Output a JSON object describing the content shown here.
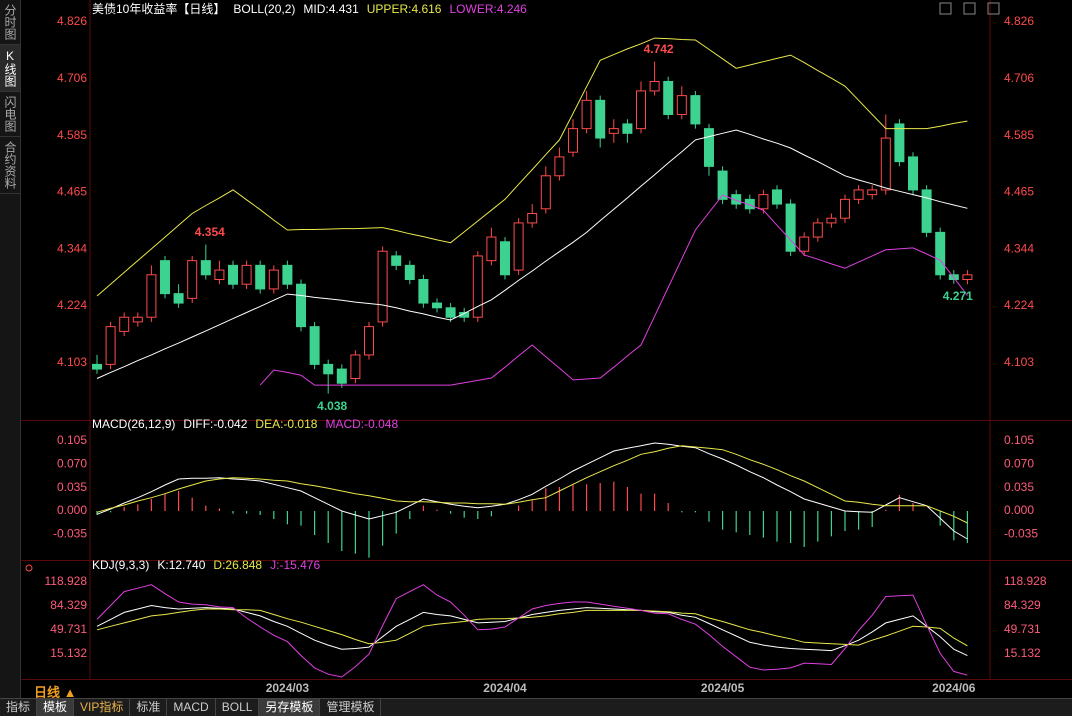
{
  "ui": {
    "sidebar": [
      "分时图",
      "K线图",
      "闪电图",
      "合约资料"
    ],
    "period": "日线 ▲",
    "tabs": [
      "指标",
      "模板",
      "VIP指标",
      "标准",
      "MACD",
      "BOLL",
      "另存模板",
      "管理模板"
    ]
  },
  "chart_data": [
    {
      "type": "candlestick",
      "title": "美债10年收益率【日线】",
      "indicator": "BOLL(20,2)",
      "categories": [
        null,
        null,
        null,
        null,
        null,
        null,
        null,
        null,
        null,
        null,
        null,
        null,
        null,
        null,
        "2024/03",
        null,
        null,
        null,
        null,
        null,
        null,
        null,
        null,
        null,
        null,
        null,
        null,
        null,
        null,
        null,
        "2024/04",
        null,
        null,
        null,
        null,
        null,
        null,
        null,
        null,
        null,
        null,
        null,
        null,
        null,
        null,
        null,
        "2024/05",
        null,
        null,
        null,
        null,
        null,
        null,
        null,
        null,
        null,
        null,
        null,
        null,
        null,
        null,
        null,
        null,
        "2024/06",
        null
      ],
      "open": [
        4.1,
        4.1,
        4.17,
        4.19,
        4.2,
        4.32,
        4.25,
        4.24,
        4.32,
        4.28,
        4.31,
        4.27,
        4.31,
        4.26,
        4.31,
        4.27,
        4.18,
        4.1,
        4.09,
        4.07,
        4.12,
        4.19,
        4.33,
        4.31,
        4.28,
        4.23,
        4.22,
        4.21,
        4.2,
        4.32,
        4.36,
        4.3,
        4.4,
        4.43,
        4.5,
        4.55,
        4.6,
        4.66,
        4.59,
        4.61,
        4.6,
        4.68,
        4.7,
        4.63,
        4.67,
        4.6,
        4.51,
        4.46,
        4.45,
        4.43,
        4.47,
        4.44,
        4.34,
        4.37,
        4.4,
        4.41,
        4.45,
        4.46,
        4.47,
        4.61,
        4.54,
        4.47,
        4.38,
        4.29,
        4.28
      ],
      "high": [
        4.12,
        4.19,
        4.21,
        4.21,
        4.31,
        4.33,
        4.27,
        4.33,
        4.354,
        4.32,
        4.32,
        4.32,
        4.32,
        4.31,
        4.32,
        4.28,
        4.19,
        4.11,
        4.1,
        4.13,
        4.19,
        4.35,
        4.34,
        4.32,
        4.29,
        4.24,
        4.23,
        4.22,
        4.34,
        4.39,
        4.37,
        4.41,
        4.44,
        4.52,
        4.56,
        4.62,
        4.68,
        4.67,
        4.62,
        4.62,
        4.7,
        4.742,
        4.71,
        4.69,
        4.68,
        4.61,
        4.52,
        4.47,
        4.46,
        4.47,
        4.48,
        4.45,
        4.38,
        4.41,
        4.42,
        4.46,
        4.48,
        4.48,
        4.63,
        4.62,
        4.55,
        4.48,
        4.39,
        4.3,
        4.3
      ],
      "low": [
        4.08,
        4.09,
        4.16,
        4.18,
        4.19,
        4.24,
        4.22,
        4.23,
        4.28,
        4.27,
        4.26,
        4.26,
        4.25,
        4.25,
        4.26,
        4.17,
        4.09,
        4.038,
        4.05,
        4.06,
        4.11,
        4.18,
        4.3,
        4.27,
        4.22,
        4.21,
        4.19,
        4.19,
        4.19,
        4.31,
        4.28,
        4.29,
        4.39,
        4.42,
        4.49,
        4.54,
        4.59,
        4.56,
        4.57,
        4.57,
        4.59,
        4.67,
        4.62,
        4.62,
        4.6,
        4.5,
        4.44,
        4.43,
        4.42,
        4.42,
        4.43,
        4.33,
        4.33,
        4.36,
        4.39,
        4.4,
        4.44,
        4.45,
        4.46,
        4.52,
        4.46,
        4.37,
        4.28,
        4.271,
        4.27
      ],
      "close": [
        4.09,
        4.18,
        4.2,
        4.2,
        4.29,
        4.25,
        4.23,
        4.32,
        4.29,
        4.3,
        4.27,
        4.31,
        4.26,
        4.3,
        4.27,
        4.18,
        4.1,
        4.08,
        4.06,
        4.12,
        4.18,
        4.34,
        4.31,
        4.28,
        4.23,
        4.22,
        4.2,
        4.2,
        4.33,
        4.37,
        4.29,
        4.4,
        4.42,
        4.5,
        4.54,
        4.6,
        4.66,
        4.58,
        4.6,
        4.59,
        4.68,
        4.7,
        4.63,
        4.67,
        4.61,
        4.52,
        4.45,
        4.44,
        4.43,
        4.46,
        4.44,
        4.34,
        4.37,
        4.4,
        4.41,
        4.45,
        4.47,
        4.47,
        4.58,
        4.53,
        4.47,
        4.38,
        4.29,
        4.28,
        4.29
      ],
      "up_color": "#ff4a4a",
      "down_color": "#3dd28f",
      "series": [
        {
          "name": "MID:4.431",
          "color": "#ffffff",
          "values": [
            4.07,
            4.083,
            4.095,
            4.108,
            4.12,
            4.133,
            4.145,
            4.158,
            4.171,
            4.184,
            4.197,
            4.21,
            4.223,
            4.236,
            4.249,
            4.246,
            4.242,
            4.239,
            4.236,
            4.232,
            4.229,
            4.226,
            4.22,
            4.213,
            4.207,
            4.2,
            4.194,
            4.208,
            4.223,
            4.237,
            4.257,
            4.278,
            4.298,
            4.319,
            4.339,
            4.359,
            4.38,
            4.405,
            4.429,
            4.453,
            4.478,
            4.502,
            4.527,
            4.551,
            4.576,
            4.583,
            4.59,
            4.597,
            4.588,
            4.578,
            4.569,
            4.559,
            4.544,
            4.53,
            4.515,
            4.5,
            4.491,
            4.483,
            4.474,
            4.467,
            4.46,
            4.453,
            4.445,
            4.438,
            4.431
          ]
        },
        {
          "name": "UPPER:4.616",
          "color": "#e8e84a",
          "values": [
            4.245,
            4.27,
            4.295,
            4.32,
            4.345,
            4.37,
            4.395,
            4.42,
            4.437,
            4.453,
            4.47,
            4.449,
            4.428,
            4.406,
            4.385,
            4.386,
            4.386,
            4.387,
            4.388,
            4.388,
            4.389,
            4.39,
            4.384,
            4.377,
            4.371,
            4.364,
            4.358,
            4.381,
            4.404,
            4.427,
            4.45,
            4.482,
            4.513,
            4.545,
            4.576,
            4.632,
            4.689,
            4.745,
            4.757,
            4.769,
            4.78,
            4.792,
            4.791,
            4.789,
            4.788,
            4.768,
            4.748,
            4.728,
            4.735,
            4.742,
            4.749,
            4.756,
            4.74,
            4.723,
            4.707,
            4.69,
            4.66,
            4.63,
            4.6,
            4.6,
            4.6,
            4.6,
            4.605,
            4.611,
            4.616
          ]
        },
        {
          "name": "LOWER:4.246",
          "color": "#e040e0",
          "values": [
            null,
            null,
            null,
            null,
            null,
            null,
            null,
            null,
            null,
            null,
            null,
            null,
            4.056,
            4.088,
            4.083,
            4.077,
            4.056,
            4.056,
            4.056,
            4.056,
            4.056,
            4.056,
            4.056,
            4.056,
            4.056,
            4.056,
            4.056,
            4.061,
            4.066,
            4.071,
            4.094,
            4.118,
            4.141,
            4.116,
            4.092,
            4.067,
            4.069,
            4.071,
            4.094,
            4.118,
            4.141,
            4.202,
            4.263,
            4.324,
            4.385,
            4.422,
            4.459,
            4.448,
            4.438,
            4.427,
            4.395,
            4.364,
            4.332,
            4.323,
            4.313,
            4.304,
            4.317,
            4.33,
            4.343,
            4.345,
            4.347,
            4.334,
            4.321,
            4.284,
            4.246
          ]
        }
      ],
      "annotations": [
        {
          "index": 8,
          "value": 4.354
        },
        {
          "index": 17,
          "value": 4.038
        },
        {
          "index": 41,
          "value": 4.742
        },
        {
          "index": 63,
          "value": 4.271
        }
      ],
      "ylim": [
        3.982,
        4.841
      ],
      "yticks": [
        4.103,
        4.224,
        4.344,
        4.465,
        4.585,
        4.706,
        4.826
      ],
      "tick_color": "#ff4a4a"
    },
    {
      "type": "macd",
      "indicator": "MACD(26,12,9)",
      "up_color": "#ff4a4a",
      "down_color": "#3dd28f",
      "series": [
        {
          "name": "DIFF:-0.042",
          "color": "#ffffff",
          "values": [
            -0.005,
            0.003,
            0.012,
            0.02,
            0.029,
            0.039,
            0.048,
            0.049,
            0.049,
            0.05,
            0.048,
            0.047,
            0.045,
            0.04,
            0.035,
            0.03,
            0.02,
            0.01,
            0.0,
            -0.006,
            -0.012,
            -0.007,
            -0.002,
            0.008,
            0.018,
            0.014,
            0.01,
            0.007,
            0.005,
            0.007,
            0.01,
            0.017,
            0.025,
            0.037,
            0.048,
            0.06,
            0.07,
            0.08,
            0.09,
            0.094,
            0.098,
            0.102,
            0.1,
            0.097,
            0.095,
            0.086,
            0.078,
            0.069,
            0.059,
            0.05,
            0.039,
            0.029,
            0.018,
            0.012,
            0.006,
            0.0,
            -0.001,
            -0.002,
            0.009,
            0.02,
            0.014,
            0.008,
            -0.011,
            -0.03,
            -0.042
          ]
        },
        {
          "name": "DEA:-0.018",
          "color": "#e8e84a",
          "values": [
            -0.002,
            0.004,
            0.009,
            0.015,
            0.02,
            0.026,
            0.033,
            0.039,
            0.045,
            0.048,
            0.05,
            0.049,
            0.048,
            0.046,
            0.045,
            0.041,
            0.038,
            0.034,
            0.03,
            0.026,
            0.023,
            0.019,
            0.015,
            0.014,
            0.014,
            0.013,
            0.012,
            0.012,
            0.011,
            0.011,
            0.01,
            0.013,
            0.017,
            0.02,
            0.03,
            0.04,
            0.05,
            0.059,
            0.068,
            0.076,
            0.085,
            0.089,
            0.094,
            0.098,
            0.096,
            0.094,
            0.092,
            0.085,
            0.077,
            0.07,
            0.062,
            0.053,
            0.045,
            0.035,
            0.025,
            0.015,
            0.013,
            0.01,
            0.008,
            0.008,
            0.008,
            0.008,
            0.0,
            -0.008,
            -0.018
          ]
        },
        {
          "name": "MACD:-0.048",
          "color": "#e040e0",
          "bars": true,
          "values": [
            -0.006,
            -0.002,
            0.006,
            0.01,
            0.018,
            0.026,
            0.03,
            0.02,
            0.008,
            0.004,
            -0.004,
            -0.004,
            -0.006,
            -0.012,
            -0.02,
            -0.022,
            -0.036,
            -0.048,
            -0.06,
            -0.064,
            -0.07,
            -0.052,
            -0.034,
            -0.012,
            0.008,
            0.002,
            -0.004,
            -0.01,
            -0.012,
            -0.008,
            0.0,
            0.008,
            0.016,
            0.034,
            0.036,
            0.04,
            0.04,
            0.042,
            0.044,
            0.036,
            0.026,
            0.026,
            0.012,
            -0.002,
            -0.002,
            -0.016,
            -0.028,
            -0.032,
            -0.036,
            -0.04,
            -0.046,
            -0.048,
            -0.054,
            -0.046,
            -0.038,
            -0.03,
            -0.028,
            -0.024,
            0.002,
            0.024,
            0.012,
            0.0,
            -0.022,
            -0.044,
            -0.048
          ]
        }
      ],
      "ylim": [
        -0.0735,
        0.1305
      ],
      "yticks": [
        0.105,
        {
          "value": 0.07,
          "label": "0.070"
        },
        0.035,
        {
          "value": 0,
          "label": "0.000"
        },
        -0.035
      ],
      "tick_color": "#ff5a7a"
    },
    {
      "type": "line",
      "indicator": "KDJ(9,3,3)",
      "series": [
        {
          "name": "K:12.740",
          "color": "#ffffff",
          "values": [
            55,
            65,
            75,
            80,
            85,
            82,
            80,
            81,
            82,
            81,
            80,
            75,
            70,
            62,
            55,
            45,
            35,
            28,
            22,
            23,
            25,
            40,
            55,
            65,
            75,
            72,
            70,
            65,
            60,
            61,
            62,
            67,
            72,
            75,
            78,
            80,
            82,
            81,
            80,
            79,
            78,
            76,
            75,
            71,
            68,
            59,
            50,
            41,
            32,
            28,
            25,
            23,
            22,
            21,
            20,
            27,
            35,
            47,
            60,
            65,
            70,
            55,
            40,
            22,
            12.74
          ]
        },
        {
          "name": "D:26.848",
          "color": "#e8e84a",
          "values": [
            50,
            55,
            60,
            65,
            70,
            72,
            75,
            78,
            80,
            80,
            79,
            79,
            78,
            72,
            66,
            61,
            55,
            49,
            43,
            36,
            30,
            32,
            35,
            45,
            55,
            58,
            60,
            62,
            65,
            66,
            66,
            67,
            68,
            70,
            73,
            75,
            78,
            78,
            78,
            78,
            78,
            77,
            76,
            74,
            73,
            67,
            62,
            56,
            50,
            46,
            41,
            37,
            32,
            31,
            30,
            29,
            28,
            35,
            41,
            48,
            55,
            54,
            52,
            38,
            26.848
          ]
        },
        {
          "name": "J:-15.476",
          "color": "#e040e0",
          "values": [
            65,
            85,
            105,
            110,
            115,
            102,
            90,
            87,
            86,
            83,
            82,
            67,
            54,
            42,
            33,
            13,
            -5,
            -14,
            -18,
            -3,
            15,
            56,
            95,
            105,
            115,
            100,
            90,
            71,
            50,
            51,
            54,
            67,
            80,
            85,
            88,
            90,
            90,
            87,
            84,
            81,
            78,
            74,
            73,
            65,
            58,
            43,
            26,
            11,
            -4,
            -8,
            -7,
            -5,
            2,
            1,
            0,
            23,
            49,
            71,
            98,
            99,
            100,
            57,
            16,
            -10,
            -15.476
          ]
        }
      ],
      "ylim": [
        -19.5,
        143.4
      ],
      "yticks": [
        118.928,
        84.329,
        49.731,
        15.132
      ],
      "tick_color": "#ff5a7a"
    }
  ]
}
